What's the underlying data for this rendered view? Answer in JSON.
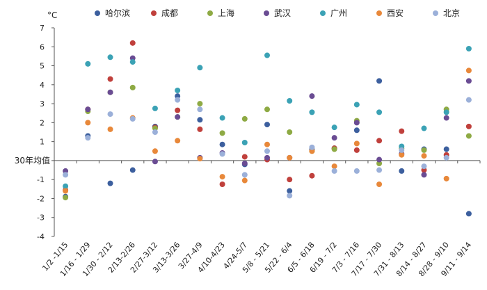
{
  "chart_data": {
    "type": "scatter",
    "unit": "°C",
    "baseline_label": "30年均值",
    "ylim": [
      -4,
      7
    ],
    "yticks": [
      -4,
      -3,
      -2,
      -1,
      0,
      1,
      2,
      3,
      4,
      5,
      6,
      7
    ],
    "ytick_labels": [
      "-4",
      "-3",
      "-2",
      "-1",
      "",
      "1",
      "2",
      "3",
      "4",
      "5",
      "6",
      "7"
    ],
    "grid": false,
    "legend_position": "top",
    "categories": [
      "1/2 -1/15",
      "1/16 - 1/29",
      "1/30 - 2/12",
      "2/13-2/26",
      "2/27-3/12",
      "3/13-3/26",
      "3/27-4/9",
      "4/10-4/23",
      "4/24-5/7",
      "5/8 - 5/21",
      "5/22 - 6/4",
      "6/5 - 6/18",
      "6/19 - 7/2",
      "7/3 - 7/16",
      "7/17 - 7/30",
      "7/31 - 8/13",
      "8/14 - 8/27",
      "8/28 - 9/10",
      "9/11 - 9/14"
    ],
    "series": [
      {
        "name": "哈尔滨",
        "color": "#3c5f9e",
        "values": [
          -1.9,
          1.3,
          -1.2,
          -0.5,
          1.8,
          3.4,
          2.15,
          0.85,
          -0.2,
          1.9,
          -1.6,
          0.6,
          0.65,
          1.6,
          4.2,
          -0.55,
          0.6,
          0.6,
          -2.8
        ]
      },
      {
        "name": "成都",
        "color": "#c0403c",
        "values": [
          -1.55,
          2.7,
          4.3,
          6.2,
          1.75,
          2.65,
          1.65,
          -1.25,
          0.2,
          0.05,
          -1.0,
          -0.8,
          0.65,
          0.55,
          1.05,
          1.55,
          -0.5,
          0.3,
          1.8
        ]
      },
      {
        "name": "上海",
        "color": "#8eaa44",
        "values": [
          -1.95,
          2.6,
          3.6,
          3.85,
          1.7,
          2.3,
          3.0,
          1.45,
          2.2,
          2.7,
          1.5,
          0.5,
          0.6,
          2.1,
          -0.15,
          0.65,
          0.55,
          2.7,
          1.3
        ]
      },
      {
        "name": "武汉",
        "color": "#6a4c93",
        "values": [
          -0.55,
          2.7,
          3.6,
          5.4,
          -0.05,
          2.3,
          0.15,
          0.4,
          -0.15,
          0.15,
          0.15,
          3.4,
          1.2,
          2.0,
          0.05,
          0.35,
          -0.75,
          2.25,
          4.2
        ]
      },
      {
        "name": "广州",
        "color": "#3ba2b5",
        "values": [
          -1.35,
          5.1,
          5.45,
          5.2,
          2.75,
          3.7,
          4.9,
          2.25,
          0.95,
          5.55,
          3.15,
          2.55,
          1.75,
          2.95,
          2.55,
          0.75,
          1.7,
          2.55,
          5.9
        ]
      },
      {
        "name": "西安",
        "color": "#e8883a",
        "values": [
          -1.6,
          2.0,
          1.65,
          2.25,
          0.5,
          1.05,
          0.1,
          -0.85,
          -1.05,
          0.85,
          0.15,
          0.5,
          -0.3,
          0.9,
          -1.25,
          0.3,
          0.25,
          -0.95,
          4.75
        ]
      },
      {
        "name": "北京",
        "color": "#9bb0d9",
        "values": [
          -0.75,
          1.2,
          2.45,
          2.2,
          1.5,
          3.2,
          2.7,
          0.35,
          -0.75,
          0.5,
          -1.85,
          0.7,
          -0.55,
          -0.55,
          -0.5,
          0.55,
          -0.3,
          0.15,
          3.2
        ]
      }
    ]
  }
}
